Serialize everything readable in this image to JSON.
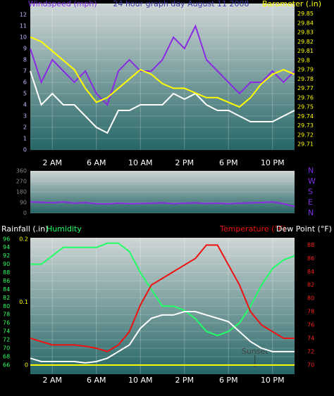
{
  "chart_data": [
    {
      "type": "line",
      "title": "24 hour graph day  August 11 2008",
      "ylabel": "Windspeed (mph)",
      "y2label": "Barometer (.in)",
      "ylabel_color": "#7b2ee0",
      "title_color": "#3a3aa8",
      "y2label_color": "#ffff00",
      "x": [
        0,
        1,
        2,
        3,
        4,
        5,
        6,
        7,
        8,
        9,
        10,
        11,
        12,
        13,
        14,
        15,
        16,
        17,
        18,
        19,
        20,
        21,
        22,
        23,
        24
      ],
      "xlim": [
        0,
        24
      ],
      "xticks": [
        {
          "value": 2,
          "label": "2 AM"
        },
        {
          "value": 6,
          "label": "6 AM"
        },
        {
          "value": 10,
          "label": "10 AM"
        },
        {
          "value": 14,
          "label": "2 PM"
        },
        {
          "value": 18,
          "label": "6 PM"
        },
        {
          "value": 22,
          "label": "10 PM"
        }
      ],
      "ylim": [
        0,
        13
      ],
      "yticks": [
        0,
        1,
        2,
        3,
        4,
        5,
        6,
        7,
        8,
        9,
        10,
        11,
        12
      ],
      "ytick_color": "#c8b8ff",
      "y2lim": [
        29.704,
        29.861
      ],
      "y2ticks": [
        29.71,
        29.72,
        29.73,
        29.74,
        29.75,
        29.76,
        29.77,
        29.78,
        29.79,
        29.8,
        29.81,
        29.82,
        29.83,
        29.84,
        29.85
      ],
      "y2tick_color": "#ffff00",
      "series": [
        {
          "color": "#8a2be2",
          "values": [
            9,
            6,
            8,
            7,
            6,
            7,
            5,
            4,
            7,
            8,
            7,
            7,
            8,
            10,
            9,
            11,
            8,
            7,
            6,
            5,
            6,
            6,
            7,
            6,
            7
          ]
        },
        {
          "color": "#ffffff",
          "values": [
            7,
            4,
            5,
            4,
            4,
            3,
            2,
            1.5,
            3.5,
            3.5,
            4,
            4,
            4,
            5,
            4.5,
            5,
            4,
            3.5,
            3.5,
            3,
            2.5,
            2.5,
            2.5,
            3,
            3.5
          ]
        },
        {
          "color": "#ffff00",
          "axis": "y2",
          "values": [
            29.825,
            29.82,
            29.81,
            29.8,
            29.79,
            29.77,
            29.755,
            29.76,
            29.77,
            29.78,
            29.79,
            29.785,
            29.775,
            29.77,
            29.77,
            29.765,
            29.76,
            29.76,
            29.755,
            29.75,
            29.76,
            29.775,
            29.785,
            29.79,
            29.785
          ]
        }
      ]
    },
    {
      "type": "line",
      "x": [
        0,
        1,
        2,
        3,
        4,
        5,
        6,
        7,
        8,
        9,
        10,
        11,
        12,
        13,
        14,
        15,
        16,
        17,
        18,
        19,
        20,
        21,
        22,
        23,
        24
      ],
      "xlim": [
        0,
        24
      ],
      "ylim": [
        0,
        360
      ],
      "yticks": [
        0,
        90,
        180,
        270,
        360
      ],
      "ytick_color": "#888888",
      "y2lim": [
        0,
        360
      ],
      "y2ticks": [
        {
          "value": 0,
          "label": "N"
        },
        {
          "value": 90,
          "label": "E"
        },
        {
          "value": 180,
          "label": "S"
        },
        {
          "value": 270,
          "label": "W"
        },
        {
          "value": 360,
          "label": "N"
        }
      ],
      "y2tick_color": "#7b2ee0",
      "series": [
        {
          "color": "#8a2be2",
          "values": [
            95,
            92,
            88,
            95,
            85,
            90,
            80,
            78,
            85,
            80,
            82,
            85,
            88,
            80,
            85,
            88,
            82,
            85,
            80,
            85,
            88,
            90,
            95,
            80,
            55
          ]
        }
      ]
    },
    {
      "type": "line",
      "x": [
        0,
        1,
        2,
        3,
        4,
        5,
        6,
        7,
        8,
        9,
        10,
        11,
        12,
        13,
        14,
        15,
        16,
        17,
        18,
        19,
        20,
        21,
        22,
        23,
        24
      ],
      "xlim": [
        0,
        24
      ],
      "xticks": [
        {
          "value": 2,
          "label": "2 AM"
        },
        {
          "value": 6,
          "label": "6 AM"
        },
        {
          "value": 10,
          "label": "10 AM"
        },
        {
          "value": 14,
          "label": "2 PM"
        },
        {
          "value": 18,
          "label": "6 PM"
        },
        {
          "value": 22,
          "label": "10 PM"
        }
      ],
      "ylim": [
        63.8,
        96.3
      ],
      "yticks": [
        66,
        68,
        70,
        72,
        74,
        76,
        78,
        80,
        82,
        84,
        86,
        88,
        90,
        92,
        94,
        96
      ],
      "ytick_color": "#33ff66",
      "y2lim": [
        68.6,
        89.1
      ],
      "y2ticks": [
        70,
        72,
        74,
        76,
        78,
        80,
        82,
        84,
        86,
        88
      ],
      "y2tick_color": "#ff2020",
      "y3lim": [
        -0.0145,
        0.2022
      ],
      "y3ticks": [
        0,
        0.1,
        0.2
      ],
      "y3tick_color": "#ffff00",
      "annotations": [
        {
          "text": "Sunset",
          "x": 20.4
        }
      ],
      "series": [
        {
          "name": "Rainfall (.in)",
          "color": "#ffff00",
          "label_color": "#ffffff",
          "axis": "y3",
          "values": [
            0,
            0,
            0,
            0,
            0,
            0,
            0,
            0,
            0,
            0,
            0,
            0,
            0,
            0,
            0,
            0,
            0,
            0,
            0,
            0,
            0,
            0,
            0,
            0,
            0
          ]
        },
        {
          "name": "Humidity",
          "color": "#22ff66",
          "values": [
            90,
            90,
            92,
            94,
            94,
            94,
            94,
            95,
            95,
            93,
            88,
            84,
            80,
            80,
            79,
            77,
            74,
            73,
            74,
            76,
            80,
            85,
            89,
            91,
            92
          ]
        },
        {
          "name": "Temperature (°F)",
          "color": "#ee1111",
          "axis": "y2",
          "values": [
            74,
            73.5,
            73,
            73,
            73,
            72.8,
            72.5,
            72,
            73,
            75,
            79,
            82,
            83,
            84,
            85,
            86,
            88,
            88,
            85,
            82,
            78,
            76,
            75,
            74,
            74
          ]
        },
        {
          "name": "Dew Point (°F)",
          "color": "#ffffff",
          "axis": "y2",
          "values": [
            71,
            70.5,
            70.5,
            70.5,
            70.5,
            70.3,
            70.5,
            71,
            72,
            73,
            75.5,
            77,
            77.5,
            77.5,
            78,
            78,
            77.5,
            77,
            76.5,
            75,
            73.5,
            72.5,
            72,
            72,
            72
          ]
        }
      ]
    }
  ]
}
